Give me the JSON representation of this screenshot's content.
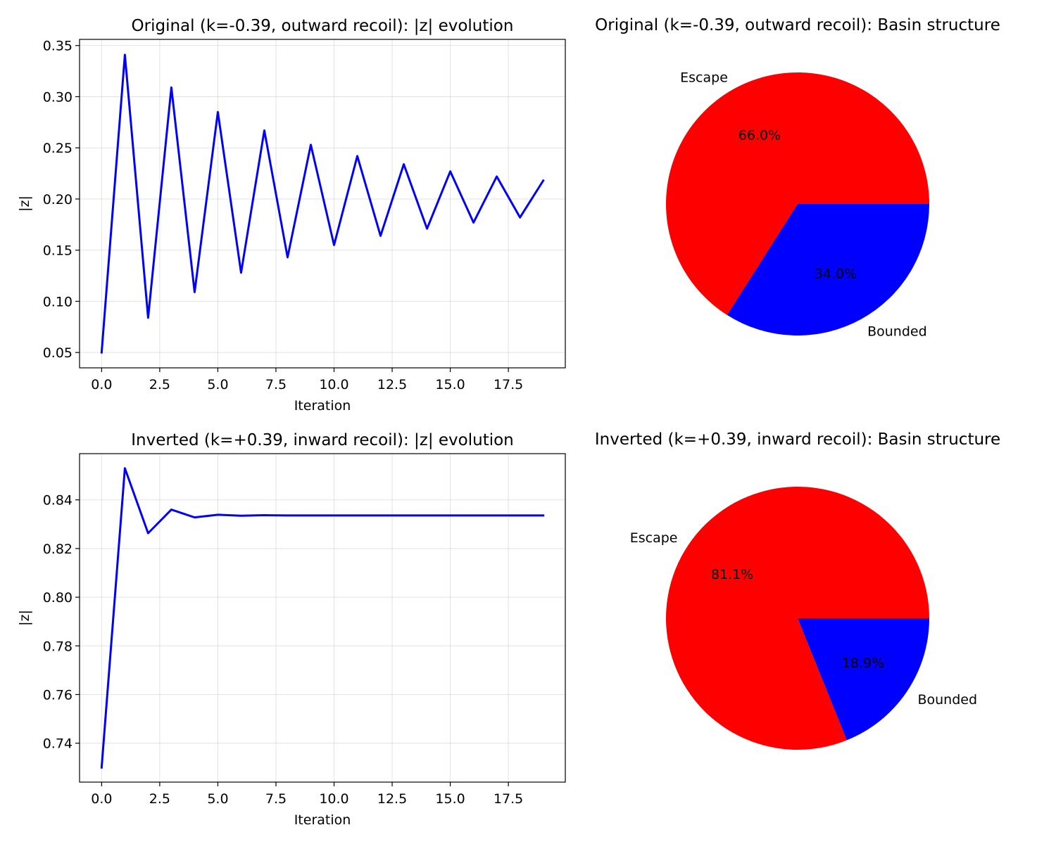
{
  "chart_data": [
    {
      "type": "line",
      "title": "Original (k=-0.39, outward recoil): |z| evolution",
      "xlabel": "Iteration",
      "ylabel": "|z|",
      "xlim": [
        -0.95,
        19.95
      ],
      "ylim": [
        0.035,
        0.356
      ],
      "xticks": [
        0.0,
        2.5,
        5.0,
        7.5,
        10.0,
        12.5,
        15.0,
        17.5
      ],
      "xtick_labels": [
        "0.0",
        "2.5",
        "5.0",
        "7.5",
        "10.0",
        "12.5",
        "15.0",
        "17.5"
      ],
      "yticks": [
        0.05,
        0.1,
        0.15,
        0.2,
        0.25,
        0.3,
        0.35
      ],
      "ytick_labels": [
        "0.05",
        "0.10",
        "0.15",
        "0.20",
        "0.25",
        "0.30",
        "0.35"
      ],
      "grid": true,
      "series": [
        {
          "color": "#0000ff",
          "x": [
            0,
            1,
            2,
            3,
            4,
            5,
            6,
            7,
            8,
            9,
            10,
            11,
            12,
            13,
            14,
            15,
            16,
            17,
            18,
            19
          ],
          "values": [
            0.05,
            0.341,
            0.084,
            0.309,
            0.109,
            0.285,
            0.128,
            0.267,
            0.143,
            0.253,
            0.155,
            0.242,
            0.164,
            0.234,
            0.171,
            0.227,
            0.177,
            0.222,
            0.182,
            0.218
          ]
        }
      ]
    },
    {
      "type": "pie",
      "title": "Original (k=-0.39, outward recoil): Basin structure",
      "slices": [
        {
          "label": "Escape",
          "value": 66.0,
          "pct_label": "66.0%",
          "color": "#ff0000"
        },
        {
          "label": "Bounded",
          "value": 34.0,
          "pct_label": "34.0%",
          "color": "#0000ff"
        }
      ]
    },
    {
      "type": "line",
      "title": "Inverted (k=+0.39, inward recoil): |z| evolution",
      "xlabel": "Iteration",
      "ylabel": "|z|",
      "xlim": [
        -0.95,
        19.95
      ],
      "ylim": [
        0.724,
        0.859
      ],
      "xticks": [
        0.0,
        2.5,
        5.0,
        7.5,
        10.0,
        12.5,
        15.0,
        17.5
      ],
      "xtick_labels": [
        "0.0",
        "2.5",
        "5.0",
        "7.5",
        "10.0",
        "12.5",
        "15.0",
        "17.5"
      ],
      "yticks": [
        0.74,
        0.76,
        0.78,
        0.8,
        0.82,
        0.84
      ],
      "ytick_labels": [
        "0.74",
        "0.76",
        "0.78",
        "0.80",
        "0.82",
        "0.84"
      ],
      "grid": true,
      "series": [
        {
          "color": "#0000ff",
          "x": [
            0,
            1,
            2,
            3,
            4,
            5,
            6,
            7,
            8,
            9,
            10,
            11,
            12,
            13,
            14,
            15,
            16,
            17,
            18,
            19
          ],
          "values": [
            0.73,
            0.853,
            0.8263,
            0.836,
            0.8328,
            0.8339,
            0.8335,
            0.8337,
            0.8336,
            0.8336,
            0.8336,
            0.8336,
            0.8336,
            0.8336,
            0.8336,
            0.8336,
            0.8336,
            0.8336,
            0.8336,
            0.8336
          ]
        }
      ]
    },
    {
      "type": "pie",
      "title": "Inverted (k=+0.39, inward recoil): Basin structure",
      "slices": [
        {
          "label": "Escape",
          "value": 81.1,
          "pct_label": "81.1%",
          "color": "#ff0000"
        },
        {
          "label": "Bounded",
          "value": 18.9,
          "pct_label": "18.9%",
          "color": "#0000ff"
        }
      ]
    }
  ]
}
